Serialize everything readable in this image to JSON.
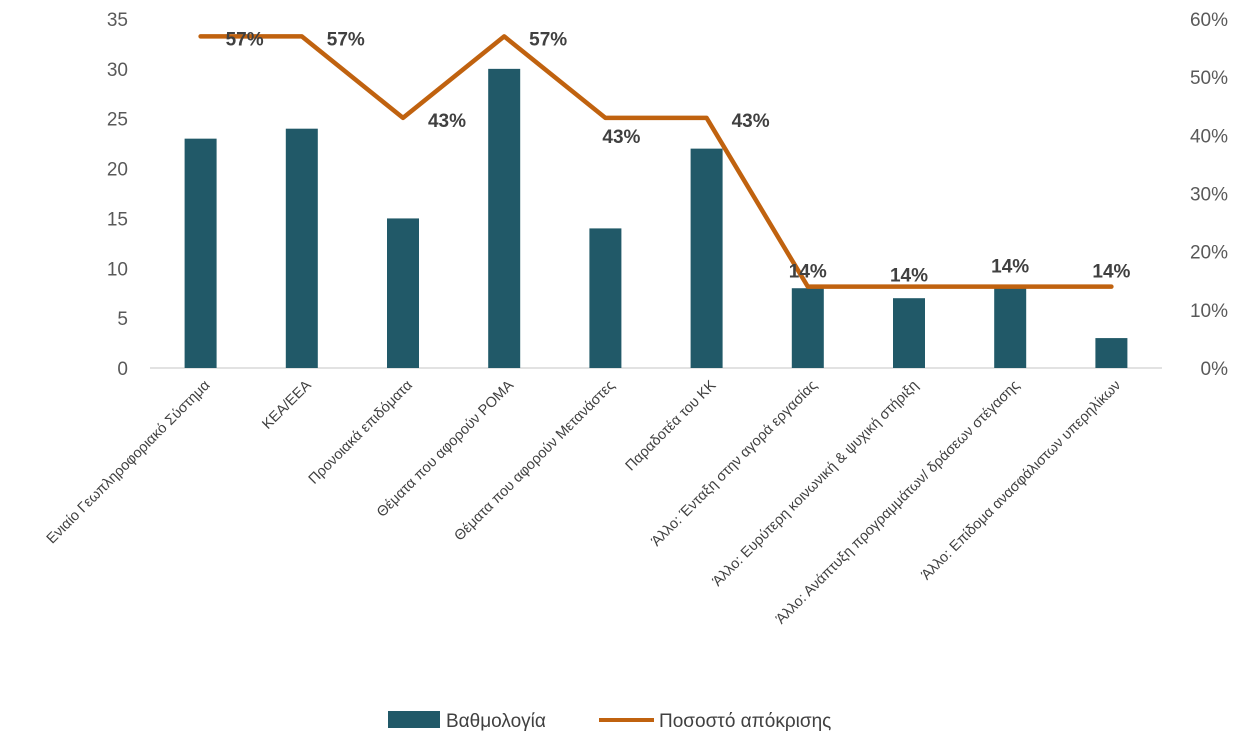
{
  "chart_data": {
    "type": "bar+line",
    "categories": [
      "Ενιαίο Γεωπληροφοριακό Σύστημα",
      "ΚΕΑ/ΕΕΑ",
      "Προνοιακά επιδόματα",
      "Θέματα που αφορούν ΡΟΜΑ",
      "Θέματα που αφορούν Μετανάστες",
      "Παραδοτέα του ΚΚ",
      "Άλλο: Ένταξη στην αγορά εργασίας",
      "Άλλο: Ευρύτερη κοινωνική & ψυχική στήριξη",
      "Άλλο: Ανάπτυξη προγραμμάτων/ δράσεων στέγασης",
      "Άλλο: Επίδομα ανασφάλιστων υπερηλίκων"
    ],
    "series": [
      {
        "name": "Βαθμολογία",
        "type": "bar",
        "axis": "left",
        "color": "#215968",
        "values": [
          23,
          24,
          15,
          30,
          14,
          22,
          8,
          7,
          8,
          3
        ]
      },
      {
        "name": "Ποσοστό απόκρισης",
        "type": "line",
        "axis": "right",
        "color": "#c0620f",
        "values": [
          57,
          57,
          43,
          57,
          43,
          43,
          14,
          14,
          14,
          14
        ],
        "labels": [
          "57%",
          "57%",
          "43%",
          "57%",
          "43%",
          "43%",
          "14%",
          "14%",
          "14%",
          "14%"
        ]
      }
    ],
    "y_left": {
      "min": 0,
      "max": 35,
      "ticks": [
        "0",
        "5",
        "10",
        "15",
        "20",
        "25",
        "30",
        "35"
      ]
    },
    "y_right": {
      "min": 0,
      "max": 60,
      "ticks": [
        "0%",
        "10%",
        "20%",
        "30%",
        "40%",
        "50%",
        "60%"
      ]
    },
    "grid": false,
    "legend_position": "bottom"
  }
}
